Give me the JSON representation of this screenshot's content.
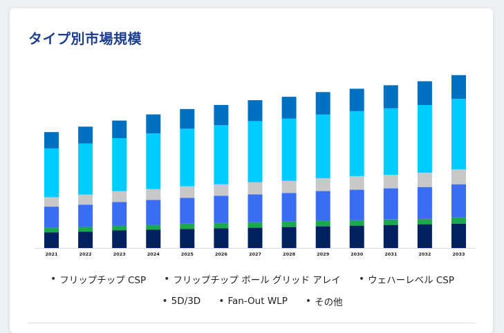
{
  "title": "タイプ別市場規模",
  "chart_data": {
    "type": "bar",
    "stacked": true,
    "title": "タイプ別市場規模",
    "categories": [
      "2021",
      "2022",
      "2023",
      "2024",
      "2025",
      "2026",
      "2027",
      "2028",
      "2029",
      "2030",
      "2031",
      "2032",
      "2033"
    ],
    "series": [
      {
        "name": "その他",
        "color": "#002060",
        "values": [
          23,
          24,
          26,
          27,
          28,
          29,
          30,
          31,
          32,
          33,
          34,
          35,
          36
        ]
      },
      {
        "name": "Fan-Out WLP",
        "color": "#1ca84c",
        "values": [
          7,
          7,
          7,
          7,
          8,
          8,
          8,
          8,
          8,
          8,
          8,
          8,
          9
        ]
      },
      {
        "name": "5D/3D",
        "color": "#3a6cf4",
        "values": [
          31,
          33,
          35,
          37,
          38,
          40,
          41,
          42,
          44,
          45,
          46,
          47,
          49
        ]
      },
      {
        "name": "ウェハーレベル CSP",
        "color": "#c8c8c8",
        "values": [
          14,
          15,
          16,
          16,
          17,
          17,
          18,
          18,
          19,
          20,
          20,
          21,
          22
        ]
      },
      {
        "name": "フリップチップ ボール グリッド アレイ",
        "color": "#00ccff",
        "values": [
          72,
          75,
          78,
          82,
          85,
          87,
          90,
          92,
          94,
          96,
          98,
          100,
          104
        ]
      },
      {
        "name": "フリップチップ CSP",
        "color": "#0070c0",
        "values": [
          24,
          25,
          26,
          28,
          29,
          30,
          31,
          32,
          33,
          33,
          34,
          35,
          35
        ]
      }
    ],
    "ylim": [
      0,
      270
    ],
    "grid": false,
    "legend_position": "bottom"
  },
  "legend": {
    "row1": [
      "フリップチップ CSP",
      "フリップチップ ボール グリッド アレイ",
      "ウェハーレベル CSP"
    ],
    "row2": [
      "5D/3D",
      "Fan-Out WLP",
      "その他"
    ],
    "bullet": "•"
  }
}
